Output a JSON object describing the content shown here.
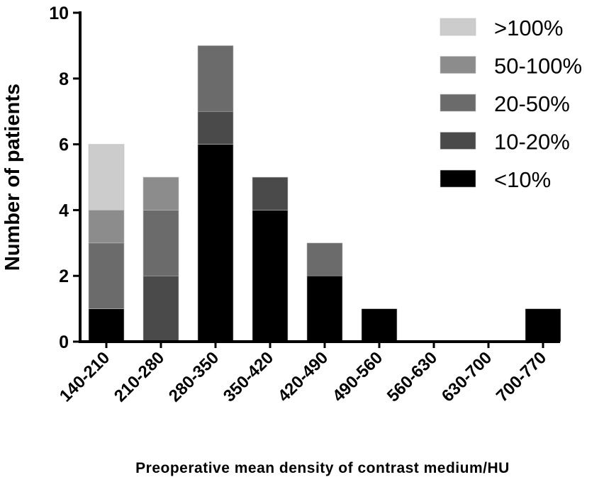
{
  "chart_data": {
    "type": "bar",
    "stacked": true,
    "title": "",
    "xlabel": "Preoperative mean density of contrast medium/HU",
    "ylabel": "Number of patients",
    "ylim": [
      0,
      10
    ],
    "yticks": [
      0,
      2,
      4,
      6,
      8,
      10
    ],
    "grid": false,
    "legend_position": "top-right",
    "categories": [
      "140-210",
      "210-280",
      "280-350",
      "350-420",
      "420-490",
      "490-560",
      "560-630",
      "630-700",
      "700-770"
    ],
    "series": [
      {
        "name": "<10%",
        "color": "#000000",
        "values": [
          1,
          0,
          6,
          4,
          2,
          1,
          0,
          0,
          1
        ]
      },
      {
        "name": "10-20%",
        "color": "#4a4a4a",
        "values": [
          0,
          2,
          1,
          1,
          0,
          0,
          0,
          0,
          0
        ]
      },
      {
        "name": "20-50%",
        "color": "#6b6b6b",
        "values": [
          2,
          2,
          2,
          0,
          1,
          0,
          0,
          0,
          0
        ]
      },
      {
        "name": "50-100%",
        "color": "#8c8c8c",
        "values": [
          1,
          1,
          0,
          0,
          0,
          0,
          0,
          0,
          0
        ]
      },
      {
        "name": ">100%",
        "color": "#cccccc",
        "values": [
          2,
          0,
          0,
          0,
          0,
          0,
          0,
          0,
          0
        ]
      }
    ]
  }
}
